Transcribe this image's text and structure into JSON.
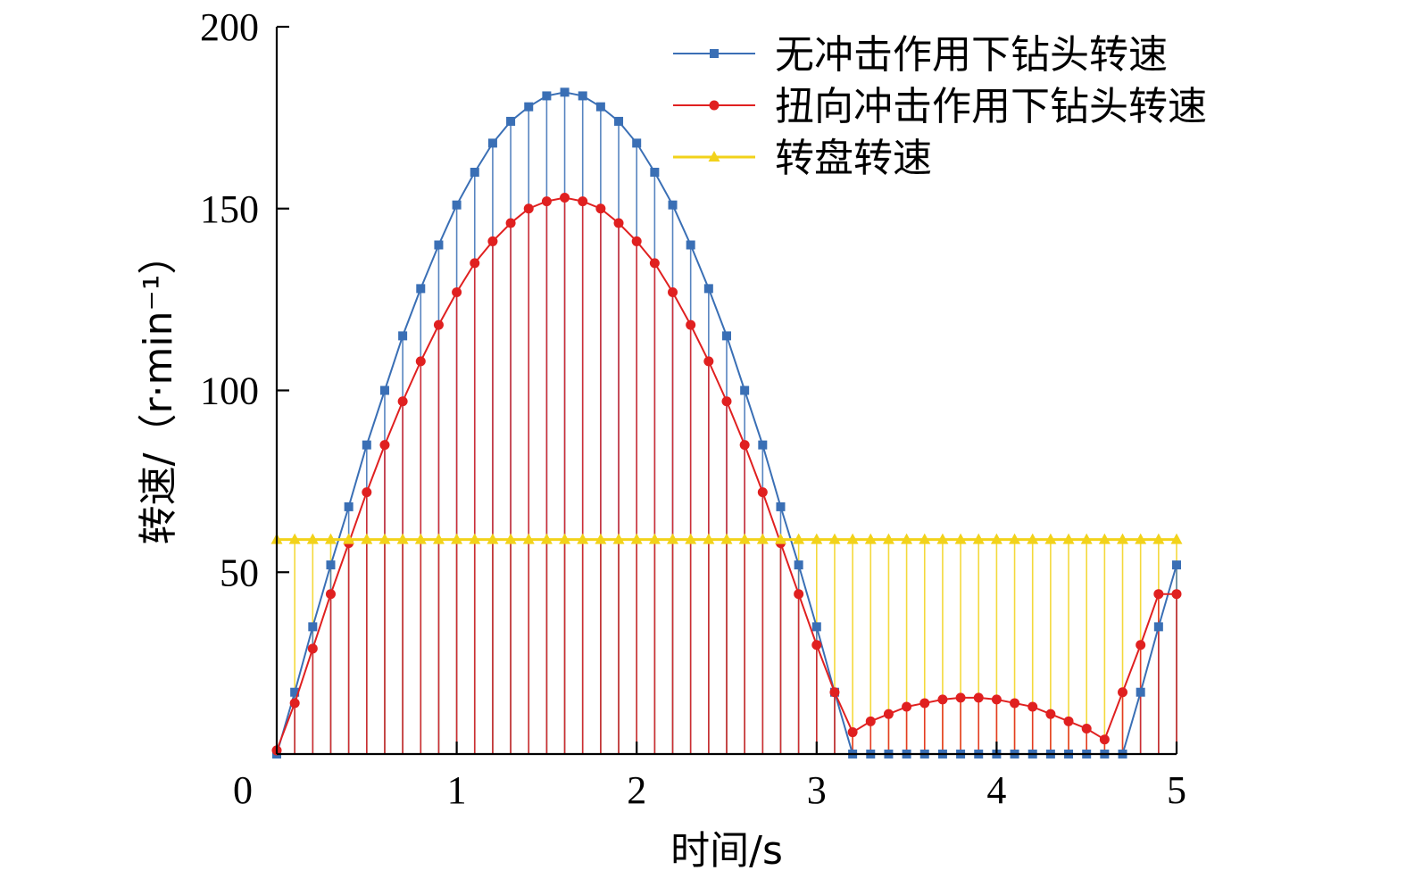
{
  "chart_data": {
    "type": "line",
    "title": "",
    "xlabel": "时间/s",
    "ylabel": "转速/（r·min⁻¹）",
    "xlim": [
      0,
      5
    ],
    "ylim": [
      0,
      200
    ],
    "x_ticks": [
      "0",
      "1",
      "2",
      "3",
      "4",
      "5"
    ],
    "y_ticks": [
      "50",
      "100",
      "150",
      "200"
    ],
    "grid": false,
    "legend_position": "top-right",
    "x": [
      0.0,
      0.1,
      0.2,
      0.3,
      0.4,
      0.5,
      0.6,
      0.7,
      0.8,
      0.9,
      1.0,
      1.1,
      1.2,
      1.3,
      1.4,
      1.5,
      1.6,
      1.7,
      1.8,
      1.9,
      2.0,
      2.1,
      2.2,
      2.3,
      2.4,
      2.5,
      2.6,
      2.7,
      2.8,
      2.9,
      3.0,
      3.1,
      3.2,
      3.3,
      3.4,
      3.5,
      3.6,
      3.7,
      3.8,
      3.9,
      4.0,
      4.1,
      4.2,
      4.3,
      4.4,
      4.5,
      4.6,
      4.7,
      4.8,
      4.9,
      5.0
    ],
    "series": [
      {
        "name": "无冲击作用下钻头转速",
        "color": "#3a6fb5",
        "marker": "square",
        "values": [
          0,
          17,
          35,
          52,
          68,
          85,
          100,
          115,
          128,
          140,
          151,
          160,
          168,
          174,
          178,
          181,
          182,
          181,
          178,
          174,
          168,
          160,
          151,
          140,
          128,
          115,
          100,
          85,
          68,
          52,
          35,
          17,
          0,
          0,
          0,
          0,
          0,
          0,
          0,
          0,
          0,
          0,
          0,
          0,
          0,
          0,
          0,
          0,
          17,
          35,
          52
        ]
      },
      {
        "name": "扭向冲击作用下钻头转速",
        "color": "#e02020",
        "marker": "circle",
        "values": [
          1,
          14,
          29,
          44,
          58,
          72,
          85,
          97,
          108,
          118,
          127,
          135,
          141,
          146,
          150,
          152,
          153,
          152,
          150,
          146,
          141,
          135,
          127,
          118,
          108,
          97,
          85,
          72,
          58,
          44,
          30,
          17,
          6,
          9,
          11,
          13,
          14,
          15,
          15.5,
          15.5,
          15,
          14,
          13,
          11,
          9,
          7,
          4,
          17,
          30,
          44,
          44
        ]
      },
      {
        "name": "转盘转速",
        "color": "#f2d21a",
        "marker": "triangle",
        "values": [
          59,
          59,
          59,
          59,
          59,
          59,
          59,
          59,
          59,
          59,
          59,
          59,
          59,
          59,
          59,
          59,
          59,
          59,
          59,
          59,
          59,
          59,
          59,
          59,
          59,
          59,
          59,
          59,
          59,
          59,
          59,
          59,
          59,
          59,
          59,
          59,
          59,
          59,
          59,
          59,
          59,
          59,
          59,
          59,
          59,
          59,
          59,
          59,
          59,
          59,
          59
        ]
      }
    ]
  }
}
